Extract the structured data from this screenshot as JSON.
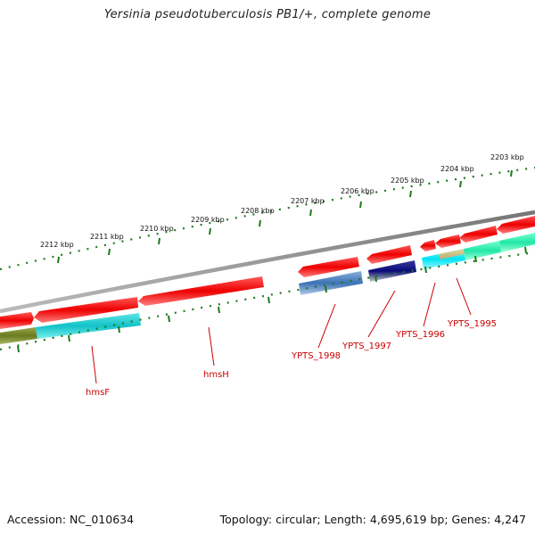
{
  "header": {
    "title": "Yersinia pseudotuberculosis PB1/+, complete genome"
  },
  "footer": {
    "accession": "Accession: NC_010634",
    "topology": "Topology: circular; Length: 4,695,619 bp; Genes: 4,247"
  },
  "ruler": {
    "labels": [
      "2212 kbp",
      "2211 kbp",
      "2210 kbp",
      "2209 kbp",
      "2208 kbp",
      "2207 kbp",
      "2206 kbp",
      "2205 kbp",
      "2204 kbp",
      "2203 kbp"
    ]
  },
  "genes": [
    {
      "label": "hmsF"
    },
    {
      "label": "hmsH"
    },
    {
      "label": "YPTS_1998"
    },
    {
      "label": "YPTS_1997"
    },
    {
      "label": "YPTS_1996"
    },
    {
      "label": "YPTS_1995"
    }
  ],
  "colors": {
    "backbone": "#888888",
    "ruler_ticks": "#1e7a1e",
    "cds": "#ee1111",
    "label": "#cc0000"
  }
}
